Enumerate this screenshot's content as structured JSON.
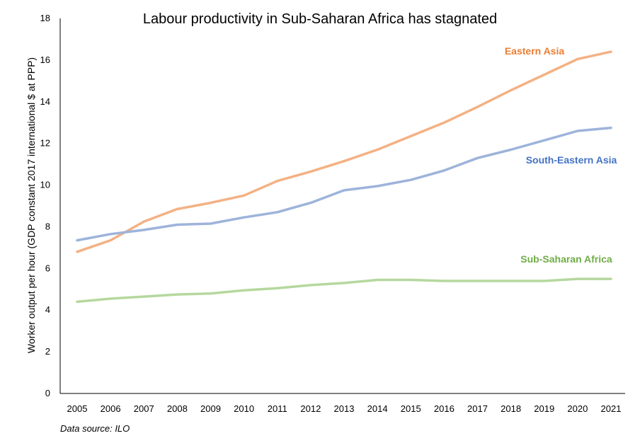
{
  "chart_data": {
    "type": "line",
    "title": "Labour productivity in Sub-Saharan Africa has stagnated",
    "xlabel": "",
    "ylabel": "Worker output per hour (GDP constant 2017 international $ at PPP)",
    "ylim": [
      0,
      18
    ],
    "yticks": [
      "0",
      "2",
      "4",
      "6",
      "8",
      "10",
      "12",
      "14",
      "16",
      "18"
    ],
    "grid": false,
    "legend": "direct labels",
    "categories": [
      "2005",
      "2006",
      "2007",
      "2008",
      "2009",
      "2010",
      "2011",
      "2012",
      "2013",
      "2014",
      "2015",
      "2016",
      "2017",
      "2018",
      "2019",
      "2020",
      "2021"
    ],
    "series": [
      {
        "name": "Eastern Asia",
        "color": "#f4b183",
        "label_color": "#ed7d31",
        "values": [
          6.8,
          7.35,
          8.25,
          8.85,
          9.15,
          9.5,
          10.2,
          10.65,
          11.15,
          11.7,
          12.35,
          13.0,
          13.75,
          14.55,
          15.3,
          16.05,
          16.4
        ]
      },
      {
        "name": "South-Eastern Asia",
        "color": "#9db3db",
        "label_color": "#4472c4",
        "values": [
          7.35,
          7.65,
          7.85,
          8.1,
          8.15,
          8.45,
          8.7,
          9.15,
          9.75,
          9.95,
          10.25,
          10.7,
          11.3,
          11.7,
          12.15,
          12.6,
          12.75
        ]
      },
      {
        "name": "Sub-Saharan Africa",
        "color": "#b5d89e",
        "label_color": "#70ad47",
        "values": [
          4.4,
          4.55,
          4.65,
          4.75,
          4.8,
          4.95,
          5.05,
          5.2,
          5.3,
          5.45,
          5.45,
          5.4,
          5.4,
          5.4,
          5.4,
          5.5,
          5.5
        ]
      }
    ],
    "source_note": "Data source: ILO"
  }
}
